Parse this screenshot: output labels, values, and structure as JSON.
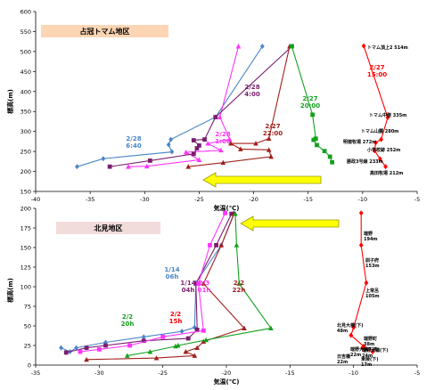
{
  "chart_data": [
    {
      "type": "line",
      "title": "占冠トマム地区",
      "xlabel": "気温(℃)",
      "ylabel": "標高(m)",
      "xlim": [
        -40,
        -5
      ],
      "ylim": [
        150,
        600
      ],
      "xticks": [
        -40,
        -35,
        -30,
        -25,
        -20,
        -15,
        -10,
        -5
      ],
      "yticks": [
        150,
        200,
        250,
        300,
        350,
        400,
        450,
        500,
        550,
        600
      ],
      "grid": false,
      "series": [
        {
          "name": "2/28 6:40",
          "color": "#4a86c8",
          "marker": "diamond",
          "points": [
            [
              -36.2,
              212
            ],
            [
              -33.8,
              232
            ],
            [
              -27.5,
              249
            ],
            [
              -27.8,
              267
            ],
            [
              -27.6,
              280
            ],
            [
              -23.5,
              336
            ],
            [
              -19.2,
              513
            ]
          ]
        },
        {
          "name": "2/28 1:00",
          "color": "#ff33ff",
          "marker": "triangle",
          "points": [
            [
              -31.5,
              212
            ],
            [
              -29.8,
              213
            ],
            [
              -25,
              229
            ],
            [
              -26.2,
              248
            ],
            [
              -23,
              253
            ],
            [
              -24.2,
              270
            ],
            [
              -22.2,
              280
            ],
            [
              -23.1,
              336
            ],
            [
              -21.4,
              513
            ]
          ]
        },
        {
          "name": "2/28 4:00",
          "color": "#7a1e6e",
          "marker": "square",
          "points": [
            [
              -33.2,
              212
            ],
            [
              -29.5,
              227
            ],
            [
              -25.5,
              244
            ],
            [
              -25.2,
              258
            ],
            [
              -25,
              265
            ],
            [
              -25.5,
              278
            ],
            [
              -24.5,
              280
            ],
            [
              -23.5,
              336
            ],
            [
              -16.5,
              513
            ]
          ]
        },
        {
          "name": "2/27 22:00",
          "color": "#a0201c",
          "marker": "triangle",
          "points": [
            [
              -26,
              212
            ],
            [
              -22.8,
              222
            ],
            [
              -18.4,
              237
            ],
            [
              -18.6,
              254
            ],
            [
              -21.2,
              256
            ],
            [
              -22.1,
              270
            ],
            [
              -19.8,
              270
            ],
            [
              -18.6,
              282
            ],
            [
              -16.7,
              513
            ]
          ]
        },
        {
          "name": "2/27 20:00",
          "color": "#14a01e",
          "marker": "square",
          "points": [
            [
              -12.8,
              223
            ],
            [
              -13,
              237
            ],
            [
              -13.5,
              251
            ],
            [
              -14.2,
              266
            ],
            [
              -14.5,
              279
            ],
            [
              -14.3,
              282
            ],
            [
              -14.6,
              342
            ],
            [
              -16.5,
              513
            ]
          ]
        },
        {
          "name": "2/27 15:00",
          "color": "#ff0000",
          "marker": "diamond",
          "points": [
            [
              -7.9,
              212
            ],
            [
              -8.4,
              231
            ],
            [
              -8.9,
              252
            ],
            [
              -8.8,
              272
            ],
            [
              -8.3,
              280
            ],
            [
              -7.7,
              335
            ],
            [
              -9.9,
              514
            ]
          ]
        }
      ],
      "series_labels": [
        {
          "text": "2/28\n6:40",
          "color": "#4a86c8"
        },
        {
          "text": "2/28\n1:00",
          "color": "#ff33ff"
        },
        {
          "text": "2/28\n4:00",
          "color": "#7a1e6e"
        },
        {
          "text": "2/27\n22:00",
          "color": "#a0201c"
        },
        {
          "text": "2/27\n20:00",
          "color": "#14a01e"
        },
        {
          "text": "2/27\n15:00",
          "color": "#ff0000"
        }
      ],
      "station_labels": [
        "トマム頂上2 514m",
        "トマム中腹 335m",
        "トマム山麓 280m",
        "明徳牧場 272m",
        "小学校跡 252m",
        "勝政3号線 233m",
        "高田牧場 212m"
      ],
      "arrow": {
        "direction": "left",
        "color": "#ffff00",
        "border": "#9a9a00"
      }
    },
    {
      "type": "line",
      "title": "北見地区",
      "xlabel": "気温(℃)",
      "ylabel": "標高(m)",
      "xlim": [
        -35,
        -5
      ],
      "ylim": [
        0,
        200
      ],
      "xticks": [
        -35,
        -30,
        -25,
        -20,
        -15,
        -10,
        -5
      ],
      "yticks": [
        0,
        25,
        50,
        75,
        100,
        125,
        150,
        175,
        200
      ],
      "grid": false,
      "series": [
        {
          "name": "1/14 06h",
          "color": "#4a86c8",
          "marker": "diamond",
          "points": [
            [
              -33,
              22
            ],
            [
              -32.3,
              17
            ],
            [
              -31.8,
              22
            ],
            [
              -29.5,
              29
            ],
            [
              -26.5,
              36
            ],
            [
              -23.5,
              43
            ],
            [
              -22.5,
              48
            ],
            [
              -22.4,
              105
            ],
            [
              -20.4,
              153
            ],
            [
              -19.4,
              194
            ]
          ]
        },
        {
          "name": "1/14 04h",
          "color": "#7a1e6e",
          "marker": "square",
          "points": [
            [
              -32.6,
              16
            ],
            [
              -31,
              22
            ],
            [
              -29.5,
              25
            ],
            [
              -26.5,
              31
            ],
            [
              -23,
              34
            ],
            [
              -22.3,
              45
            ],
            [
              -22.4,
              104
            ],
            [
              -20.8,
              153
            ],
            [
              -19.6,
              193
            ]
          ]
        },
        {
          "name": "2/3 01h",
          "color": "#ff33ff",
          "marker": "square",
          "points": [
            [
              -31.5,
              17
            ],
            [
              -30,
              20
            ],
            [
              -27.6,
              25
            ],
            [
              -25,
              36
            ],
            [
              -21.8,
              44
            ],
            [
              -22.2,
              104
            ],
            [
              -21.3,
              153
            ],
            [
              -20.1,
              194
            ]
          ]
        },
        {
          "name": "2/2 22h",
          "color": "#a0201c",
          "marker": "triangle",
          "points": [
            [
              -31,
              7
            ],
            [
              -25.5,
              9
            ],
            [
              -22.5,
              12
            ],
            [
              -23.2,
              17
            ],
            [
              -22.3,
              22
            ],
            [
              -21.8,
              30
            ],
            [
              -18.6,
              47
            ],
            [
              -21.8,
              104
            ],
            [
              -20.4,
              153
            ],
            [
              -19.4,
              193
            ]
          ]
        },
        {
          "name": "2/2 20h",
          "color": "#14a01e",
          "marker": "triangle",
          "points": [
            [
              -27.8,
              12
            ],
            [
              -26,
              17
            ],
            [
              -24,
              24
            ],
            [
              -23.8,
              25
            ],
            [
              -21.6,
              32
            ],
            [
              -16.5,
              47
            ],
            [
              -19,
              104
            ],
            [
              -19.2,
              153
            ],
            [
              -19.3,
              193
            ]
          ]
        },
        {
          "name": "2/2 15h",
          "color": "#ff0000",
          "marker": "diamond",
          "points": [
            [
              -8.5,
              17
            ],
            [
              -9.3,
              22
            ],
            [
              -9.2,
              24
            ],
            [
              -10.2,
              38
            ],
            [
              -10,
              48
            ],
            [
              -9,
              105
            ],
            [
              -9.4,
              153
            ],
            [
              -9.4,
              194
            ]
          ]
        }
      ],
      "series_labels": [
        {
          "text": "1/14\n06h",
          "color": "#4a86c8"
        },
        {
          "text": "1/14\n04h",
          "color": "#7a1e6e"
        },
        {
          "text": "2/3\n01h",
          "color": "#ff33ff"
        },
        {
          "text": "2/2\n22h",
          "color": "#a0201c"
        },
        {
          "text": "2/2\n20h",
          "color": "#14a01e"
        },
        {
          "text": "2/2\n15h",
          "color": "#ff0000"
        }
      ],
      "station_labels": [
        "端野\n194m",
        "訓子府\n153m",
        "上常呂\n105m",
        "北見大橋(下)\n48m",
        "端野町\n38m",
        "端野大橋下流\n22m",
        "端野大橋(下)\n24m",
        "日吉橋\n22m",
        "東陵(下)\n17m"
      ],
      "arrow": {
        "direction": "left",
        "color": "#ffff00",
        "border": "#9a9a00"
      }
    }
  ]
}
